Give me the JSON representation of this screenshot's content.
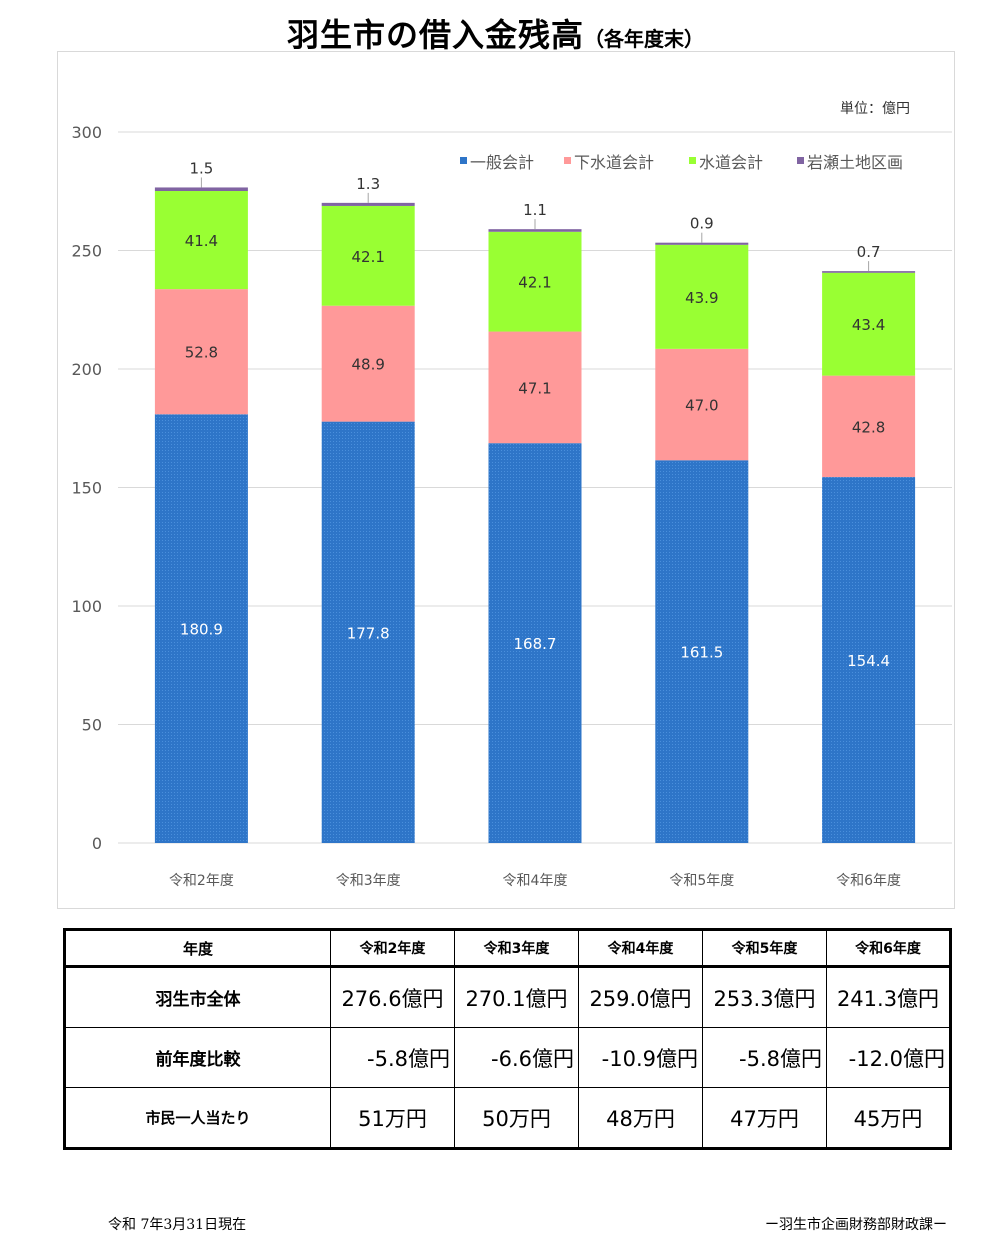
{
  "page": {
    "title_main": "羽生市の借入金残高",
    "title_sub": "（各年度末）",
    "footer_date": "令和 7年3月31日現在",
    "footer_dept": "ー羽生市企画財務部財政課ー"
  },
  "chart_data": {
    "type": "bar",
    "stacked": true,
    "unit_label": "単位：億円",
    "categories": [
      "令和2年度",
      "令和3年度",
      "令和4年度",
      "令和5年度",
      "令和6年度"
    ],
    "series": [
      {
        "name": "一般会計",
        "color": "#2e75c8",
        "values": [
          180.9,
          177.8,
          168.7,
          161.5,
          154.4
        ]
      },
      {
        "name": "下水道会計",
        "color": "#ff9999",
        "values": [
          52.8,
          48.9,
          47.1,
          47.0,
          42.8
        ]
      },
      {
        "name": "水道会計",
        "color": "#99ff33",
        "values": [
          41.4,
          42.1,
          42.1,
          43.9,
          43.4
        ]
      },
      {
        "name": "岩瀬土地区画",
        "color": "#8064a2",
        "values": [
          1.5,
          1.3,
          1.1,
          0.9,
          0.7
        ]
      }
    ],
    "ylim": [
      0,
      300
    ],
    "yticks": [
      0,
      50,
      100,
      150,
      200,
      250,
      300
    ],
    "grid": true,
    "legend_position": "top-right",
    "value_labels": [
      [
        "180.9",
        "177.8",
        "168.7",
        "161.5",
        "154.4"
      ],
      [
        "52.8",
        "48.9",
        "47.1",
        "47.0",
        "42.8"
      ],
      [
        "41.4",
        "42.1",
        "42.1",
        "43.9",
        "43.4"
      ],
      [
        "1.5",
        "1.3",
        "1.1",
        "0.9",
        "0.7"
      ]
    ]
  },
  "table": {
    "corner": "年度",
    "columns": [
      "令和2年度",
      "令和3年度",
      "令和4年度",
      "令和5年度",
      "令和6年度"
    ],
    "rows": [
      {
        "label": "羽生市全体",
        "values": [
          "276.6億円",
          "270.1億円",
          "259.0億円",
          "253.3億円",
          "241.3億円"
        ]
      },
      {
        "label": "前年度比較",
        "values": [
          "-5.8億円",
          "-6.6億円",
          "-10.9億円",
          "-5.8億円",
          "-12.0億円"
        ]
      },
      {
        "label": "市民一人当たり",
        "values": [
          "51万円",
          "50万円",
          "48万円",
          "47万円",
          "45万円"
        ]
      }
    ]
  }
}
